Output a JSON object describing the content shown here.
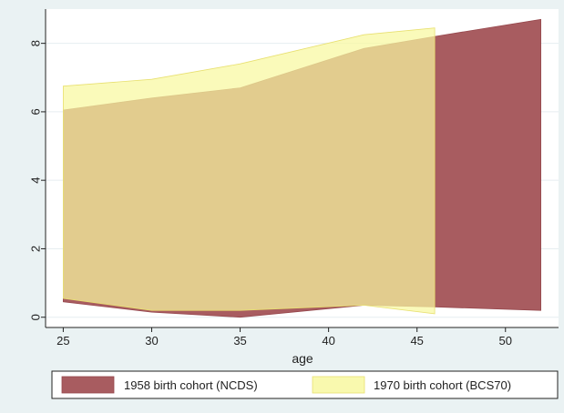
{
  "chart_data": {
    "type": "area",
    "xlabel": "age",
    "ylabel": "",
    "xlim": [
      24,
      53
    ],
    "ylim": [
      -0.3,
      9
    ],
    "x_ticks": [
      25,
      30,
      35,
      40,
      45,
      50
    ],
    "y_ticks": [
      0,
      2,
      4,
      6,
      8
    ],
    "grid": "horizontal",
    "legend_position": "bottom",
    "series": [
      {
        "name": "1958 birth cohort (NCDS)",
        "color": "#a85c60",
        "x": [
          25,
          30,
          35,
          42,
          46,
          52
        ],
        "upper": [
          6.05,
          6.4,
          6.7,
          7.85,
          8.2,
          8.7
        ],
        "lower": [
          0.45,
          0.15,
          0.0,
          0.35,
          0.3,
          0.2
        ]
      },
      {
        "name": "1970 birth cohort (BCS70)",
        "color": "#f8f8a0",
        "x": [
          25,
          30,
          35,
          42,
          46
        ],
        "upper": [
          6.75,
          6.95,
          7.4,
          8.25,
          8.45
        ],
        "lower": [
          0.55,
          0.2,
          0.2,
          0.35,
          0.1
        ]
      }
    ]
  }
}
